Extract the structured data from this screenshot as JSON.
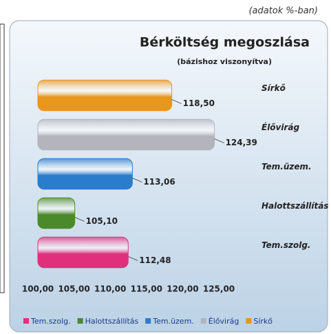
{
  "chart_data": {
    "type": "bar",
    "orientation": "horizontal",
    "note": "(adatok %-ban)",
    "title": "Bérköltség megoszlása",
    "subtitle": "(bázishoz viszonyítva)",
    "categories": [
      "Sírkő",
      "Élővirág",
      "Tem.üzem.",
      "Halottszállítás",
      "Tem.szolg."
    ],
    "values": [
      118.5,
      124.39,
      113.06,
      105.1,
      112.48
    ],
    "value_labels": [
      "118,50",
      "124,39",
      "113,06",
      "105,10",
      "112,48"
    ],
    "colors": [
      "#e8961c",
      "#b4b4bc",
      "#2a7ccc",
      "#4a8a2c",
      "#e0307c"
    ],
    "xlim": [
      100,
      125
    ],
    "xticks": [
      {
        "value": 100,
        "label": "100,00"
      },
      {
        "value": 105,
        "label": "105,00"
      },
      {
        "value": 110,
        "label": "110,00"
      },
      {
        "value": 115,
        "label": "115,00"
      },
      {
        "value": 120,
        "label": "120,00"
      },
      {
        "value": 125,
        "label": "125,00"
      }
    ],
    "legend": "bottom"
  }
}
